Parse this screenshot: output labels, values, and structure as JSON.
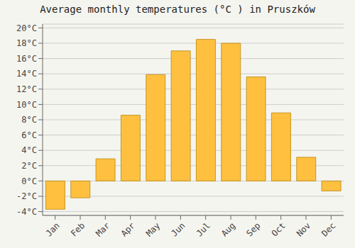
{
  "chart_data": {
    "type": "bar",
    "title": "Average monthly temperatures (°C ) in Pruszków",
    "categories": [
      "Jan",
      "Feb",
      "Mar",
      "Apr",
      "May",
      "Jun",
      "Jul",
      "Aug",
      "Sep",
      "Oct",
      "Nov",
      "Dec"
    ],
    "values": [
      -3.7,
      -2.2,
      2.9,
      8.6,
      13.9,
      17.0,
      18.5,
      18.0,
      13.6,
      8.9,
      3.1,
      -1.3
    ],
    "color": "#FFC040",
    "ylim": [
      -4.5,
      20.5
    ],
    "yticks": [
      {
        "value": -4,
        "label": "-4°C"
      },
      {
        "value": -2,
        "label": "-2°C"
      },
      {
        "value": 0,
        "label": "0°C"
      },
      {
        "value": 2,
        "label": "2°C"
      },
      {
        "value": 4,
        "label": "4°C"
      },
      {
        "value": 6,
        "label": "6°C"
      },
      {
        "value": 8,
        "label": "8°C"
      },
      {
        "value": 10,
        "label": "10°C"
      },
      {
        "value": 12,
        "label": "12°C"
      },
      {
        "value": 14,
        "label": "14°C"
      },
      {
        "value": 16,
        "label": "16°C"
      },
      {
        "value": 18,
        "label": "18°C"
      },
      {
        "value": 20,
        "label": "20°C"
      }
    ],
    "grid": true
  }
}
